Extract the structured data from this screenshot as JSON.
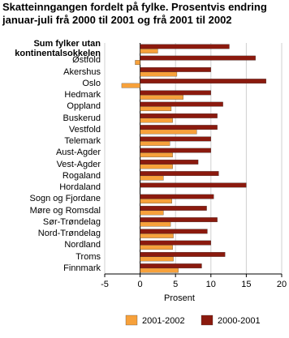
{
  "chart_data": {
    "type": "hbar",
    "title": "Skatteinngangen fordelt på fylke. Prosentvis endring januar-juli frå 2000 til 2001 og frå 2001 til 2002",
    "categories": [
      "Sum fylker utan kontinentalsokkelen",
      "Østfold",
      "Akershus",
      "Oslo",
      "Hedmark",
      "Oppland",
      "Buskerud",
      "Vestfold",
      "Telemark",
      "Aust-Agder",
      "Vest-Agder",
      "Rogaland",
      "Hordaland",
      "Sogn og Fjordane",
      "Møre og Romsdal",
      "Sør-Trøndelag",
      "Nord-Trøndelag",
      "Nordland",
      "Troms",
      "Finnmark"
    ],
    "series": [
      {
        "name": "2001-2002",
        "color": "#f7a13b",
        "values": [
          2.5,
          -0.7,
          5.2,
          -2.6,
          6.1,
          4.4,
          4.6,
          8.0,
          4.2,
          4.6,
          4.6,
          3.3,
          0,
          4.5,
          3.3,
          4.3,
          4.7,
          4.6,
          4.7,
          5.4
        ]
      },
      {
        "name": "2000-2001",
        "color": "#8b1a0e",
        "values": [
          12.6,
          16.3,
          10.0,
          17.8,
          10.0,
          11.7,
          10.9,
          10.9,
          10.0,
          10.0,
          8.2,
          11.1,
          15.0,
          10.4,
          9.4,
          10.9,
          9.5,
          10.0,
          12.0,
          8.7
        ]
      }
    ],
    "x_label": "Prosent",
    "xlim": [
      -5,
      20
    ],
    "xticks": [
      -5,
      0,
      5,
      10,
      15,
      20
    ],
    "grid": true
  }
}
